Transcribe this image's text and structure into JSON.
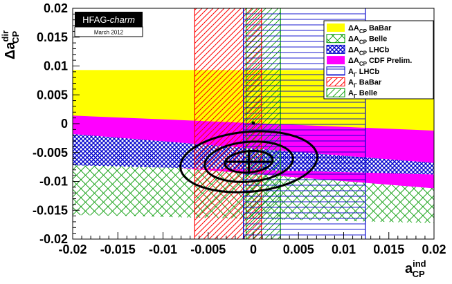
{
  "chart_data": {
    "type": "scatter",
    "xlabel": {
      "main": "a",
      "sup": "ind",
      "sub": "CP"
    },
    "ylabel": {
      "main": "Δa",
      "sup": "dir",
      "sub": "CP"
    },
    "xlim": [
      -0.02,
      0.02
    ],
    "ylim": [
      -0.02,
      0.02
    ],
    "xticks": [
      -0.02,
      -0.015,
      -0.01,
      -0.005,
      0,
      0.005,
      0.01,
      0.015,
      0.02
    ],
    "xtick_labels": [
      "-0.02",
      "-0.015",
      "-0.01",
      "-0.005",
      "0",
      "0.005",
      "0.01",
      "0.015",
      "0.02"
    ],
    "yticks": [
      -0.02,
      -0.015,
      -0.01,
      -0.005,
      0,
      0.005,
      0.01,
      0.015,
      0.02
    ],
    "ytick_labels": [
      "-0.02",
      "-0.015",
      "-0.01",
      "-0.005",
      "0",
      "0.005",
      "0.01",
      "0.015",
      "0.02"
    ],
    "badge": {
      "title_plain": "HFAG-",
      "title_italic": "charm",
      "date": "March 2012"
    },
    "bands": [
      {
        "label": "ΔA_CP BaBar",
        "kind": "hband",
        "ymin": -0.003,
        "ymax": 0.0093,
        "xmin": -0.02,
        "xmax": 0.02,
        "fill": "#ffff00",
        "pattern": "solid"
      },
      {
        "label": "ΔA_CP CDF Prelim.",
        "kind": "diag",
        "left": [
          -0.0062,
          0.0014
        ],
        "right": [
          -0.0112,
          -0.0012
        ],
        "fill": "#ff00ff",
        "pattern": "solid"
      },
      {
        "label": "ΔA_CP LHCb",
        "kind": "diag",
        "left": [
          -0.0072,
          -0.0018
        ],
        "right": [
          -0.0088,
          -0.0068
        ],
        "fill": "#0000cc",
        "pattern": "crosshatch-fine"
      },
      {
        "label": "ΔA_CP Belle",
        "kind": "diag",
        "left": [
          -0.0158,
          -0.0048
        ],
        "right": [
          -0.0172,
          -0.0088
        ],
        "fill": "#009900",
        "pattern": "crosshatch"
      },
      {
        "label": "A_Γ LHCb",
        "kind": "vband",
        "xmin": -0.0011,
        "xmax": 0.0124,
        "ymin": -0.02,
        "ymax": 0.02,
        "fill": "#0000cc",
        "pattern": "horizontal"
      },
      {
        "label": "A_Γ BaBar",
        "kind": "vband",
        "xmin": -0.0065,
        "xmax": 0.0009,
        "ymin": -0.02,
        "ymax": 0.02,
        "fill": "#ff0000",
        "pattern": "diagonal"
      },
      {
        "label": "A_Γ Belle",
        "kind": "vband",
        "xmin": -0.0008,
        "xmax": 0.003,
        "ymin": -0.02,
        "ymax": 0.02,
        "fill": "#009900",
        "pattern": "diagonal"
      }
    ],
    "legend_entries": [
      {
        "pre": "ΔA",
        "sub": "CP",
        "name": "BaBar",
        "swatch": "yellow"
      },
      {
        "pre": "ΔA",
        "sub": "CP",
        "name": "Belle",
        "swatch": "green-hatch"
      },
      {
        "pre": "ΔA",
        "sub": "CP",
        "name": "LHCb",
        "swatch": "blue-crosshatch"
      },
      {
        "pre": "ΔA",
        "sub": "CP",
        "name": "CDF Prelim.",
        "swatch": "magenta"
      },
      {
        "pre": "A",
        "sub": "Γ",
        "name": "LHCb",
        "swatch": "blue-lines"
      },
      {
        "pre": "A",
        "sub": "Γ",
        "name": "BaBar",
        "swatch": "red-hatch"
      },
      {
        "pre": "A",
        "sub": "Γ",
        "name": "Belle",
        "swatch": "green-diag"
      }
    ],
    "legend_position": "top-right",
    "fit": {
      "center": [
        -0.0005,
        -0.0066
      ],
      "ellipses": [
        {
          "rx": 0.00265,
          "ry": 0.00185
        },
        {
          "rx": 0.0049,
          "ry": 0.00345
        },
        {
          "rx": 0.0076,
          "ry": 0.0052
        }
      ],
      "tilt_deg": -5,
      "cross": {
        "dx": 0.0025,
        "dy": 0.0021
      },
      "no_cpv_point": [
        0,
        0.0001
      ]
    },
    "grid": false,
    "colors": {
      "background": "#ffffff",
      "axis": "#000000",
      "badge_bg": "#000000",
      "badge_text": "#ffffff"
    }
  }
}
